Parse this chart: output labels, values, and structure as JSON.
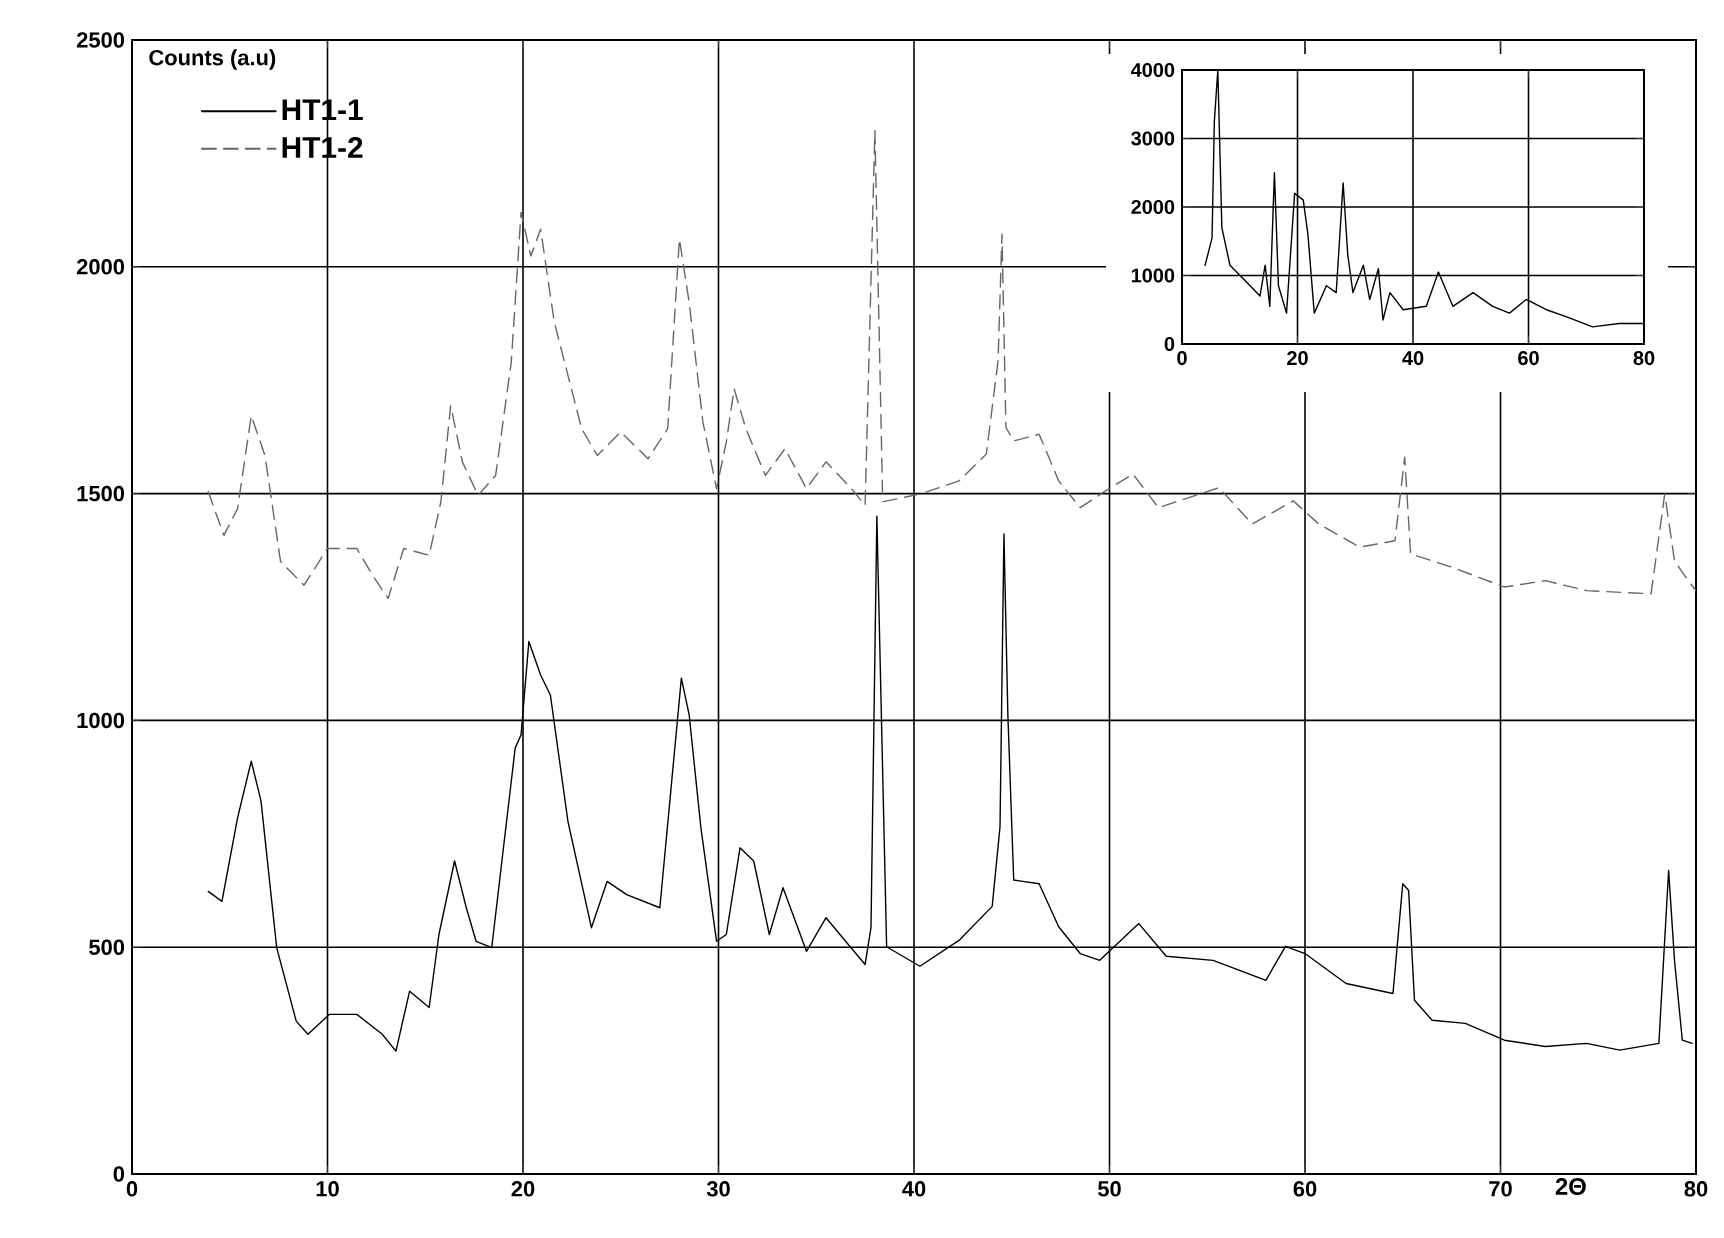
{
  "chart_data": [
    {
      "type": "line",
      "xlabel": "2Θ",
      "ylabel": "Counts (a.u)",
      "xlim": [
        0,
        80
      ],
      "ylim": [
        0,
        2500
      ],
      "xticks": [
        0,
        10,
        20,
        30,
        40,
        50,
        60,
        70,
        80
      ],
      "yticks": [
        0,
        500,
        1000,
        1500,
        2000,
        2500
      ],
      "grid": true,
      "legend": "top left",
      "marker": "none",
      "series": [
        {
          "name": "HT1-1",
          "color": "#000000",
          "line_style": "solid",
          "x": [
            3.9,
            4.6,
            5.4,
            6.1,
            6.6,
            7.4,
            8.4,
            9.0,
            10.1,
            11.5,
            12.8,
            13.5,
            14.2,
            15.2,
            15.7,
            16.5,
            17.1,
            17.6,
            18.4,
            19.6,
            19.9,
            20.3,
            20.9,
            21.4,
            22.3,
            23.5,
            24.3,
            25.3,
            27.0,
            28.1,
            28.5,
            29.1,
            29.9,
            30.4,
            31.1,
            31.8,
            32.6,
            33.3,
            34.5,
            35.5,
            36.5,
            37.5,
            37.8,
            38.1,
            38.6,
            40.3,
            42.3,
            44.0,
            44.4,
            44.6,
            44.8,
            45.1,
            46.4,
            47.4,
            48.5,
            49.5,
            51.5,
            52.9,
            55.3,
            58.0,
            59.0,
            60.0,
            62.1,
            64.5,
            65.0,
            65.3,
            65.6,
            66.5,
            68.2,
            70.2,
            72.3,
            74.4,
            76.1,
            78.1,
            78.6,
            78.9,
            79.3,
            79.8
          ],
          "values": [
            623,
            601,
            785,
            910,
            822,
            499,
            337,
            308,
            352,
            352,
            308,
            271,
            403,
            367,
            528,
            690,
            587,
            513,
            499,
            939,
            968,
            1174,
            1100,
            1056,
            777,
            543,
            645,
            616,
            587,
            1093,
            1012,
            763,
            513,
            528,
            719,
            690,
            528,
            631,
            491,
            565,
            513,
            462,
            543,
            1450,
            501,
            458,
            515,
            590,
            766,
            1411,
            1014,
            648,
            640,
            545,
            486,
            471,
            552,
            480,
            471,
            427,
            502,
            486,
            420,
            398,
            640,
            625,
            383,
            339,
            332,
            295,
            281,
            288,
            273,
            288,
            669,
            471,
            295,
            288
          ]
        },
        {
          "name": "HT1-2",
          "color": "#666666",
          "line_style": "dashed",
          "x": [
            3.9,
            4.7,
            5.4,
            6.1,
            6.8,
            7.6,
            8.8,
            10.0,
            11.5,
            12.3,
            13.1,
            13.9,
            15.2,
            15.8,
            16.3,
            16.9,
            17.7,
            18.6,
            19.4,
            19.9,
            20.4,
            20.9,
            21.6,
            23.0,
            23.8,
            25.0,
            26.4,
            27.4,
            28.0,
            28.5,
            29.2,
            29.9,
            30.4,
            30.8,
            31.4,
            32.4,
            33.4,
            34.5,
            35.5,
            36.8,
            37.5,
            38.0,
            38.4,
            40.3,
            42.3,
            43.7,
            44.3,
            44.5,
            44.7,
            45.1,
            46.4,
            47.4,
            48.5,
            49.8,
            51.2,
            52.5,
            55.6,
            57.3,
            59.4,
            60.7,
            62.8,
            64.6,
            65.1,
            65.4,
            67.5,
            70.2,
            72.3,
            74.4,
            77.7,
            78.4,
            78.9,
            79.6,
            80.0
          ],
          "values": [
            1504,
            1408,
            1467,
            1672,
            1584,
            1350,
            1298,
            1379,
            1379,
            1320,
            1269,
            1379,
            1364,
            1482,
            1694,
            1570,
            1496,
            1540,
            1790,
            2120,
            2024,
            2083,
            1878,
            1643,
            1584,
            1636,
            1577,
            1643,
            2061,
            1922,
            1658,
            1511,
            1614,
            1731,
            1643,
            1540,
            1599,
            1511,
            1570,
            1511,
            1474,
            2300,
            1482,
            1499,
            1528,
            1587,
            1793,
            2072,
            1646,
            1616,
            1631,
            1528,
            1469,
            1506,
            1543,
            1469,
            1513,
            1433,
            1484,
            1433,
            1382,
            1396,
            1580,
            1367,
            1338,
            1294,
            1308,
            1286,
            1279,
            1499,
            1352,
            1308,
            1286
          ]
        }
      ]
    },
    {
      "type": "line",
      "xlim": [
        0,
        80
      ],
      "ylim": [
        0,
        4000
      ],
      "xticks": [
        0,
        20,
        40,
        60,
        80
      ],
      "yticks": [
        0,
        1000,
        2000,
        3000,
        4000
      ],
      "grid": true,
      "marker": "none",
      "series": [
        {
          "color": "#000000",
          "line_style": "solid",
          "x": [
            4.0,
            5.2,
            5.6,
            6.2,
            6.9,
            8.3,
            11.2,
            13.5,
            14.4,
            15.2,
            16.0,
            16.7,
            18.1,
            19.5,
            21.0,
            21.8,
            22.9,
            25.0,
            26.7,
            27.9,
            28.7,
            29.6,
            31.4,
            32.5,
            34.0,
            34.8,
            36.0,
            38.3,
            42.3,
            44.4,
            46.9,
            50.4,
            53.8,
            56.7,
            59.6,
            63.1,
            66.5,
            71.1,
            75.7,
            79.8
          ],
          "values": [
            1150,
            1550,
            3250,
            4000,
            1700,
            1150,
            900,
            700,
            1150,
            550,
            2500,
            850,
            450,
            2200,
            2100,
            1600,
            450,
            850,
            750,
            2350,
            1300,
            750,
            1150,
            650,
            1100,
            350,
            750,
            500,
            550,
            1050,
            550,
            750,
            550,
            450,
            650,
            500,
            400,
            250,
            300,
            300
          ]
        }
      ]
    }
  ]
}
